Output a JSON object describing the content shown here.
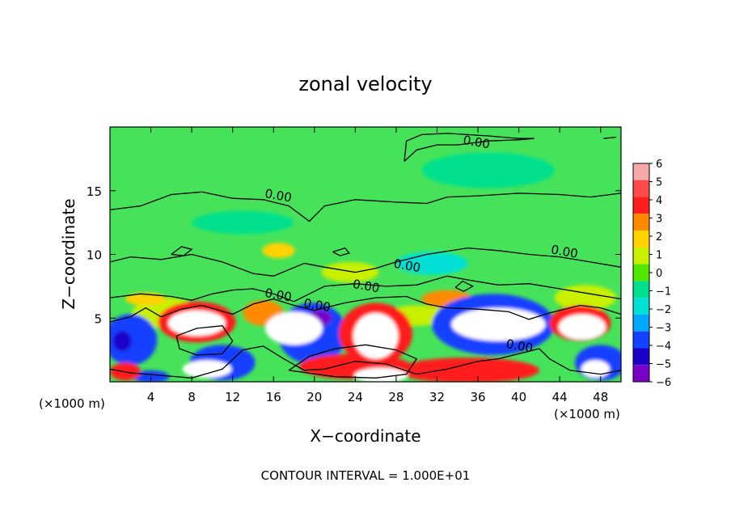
{
  "chart_data": {
    "type": "heatmap",
    "title": "zonal velocity",
    "xlabel": "X−coordinate",
    "ylabel": "Z−coordinate",
    "x_unit_left": "(×1000 m)",
    "x_unit_right": "(×1000 m)",
    "footer": "CONTOUR INTERVAL = 1.000E+01",
    "xlim": [
      0,
      50
    ],
    "ylim": [
      0,
      20
    ],
    "x_ticks": [
      4,
      8,
      12,
      16,
      20,
      24,
      28,
      32,
      36,
      40,
      44,
      48
    ],
    "y_ticks": [
      5,
      10,
      15
    ],
    "colorbar": {
      "levels": [
        6,
        5,
        4,
        3,
        2,
        1,
        0,
        -1,
        -2,
        -3,
        -4,
        -5,
        -6
      ],
      "labels": [
        "6",
        "5",
        "4",
        "3",
        "2",
        "1",
        "0",
        "−1",
        "−2",
        "−3",
        "−4",
        "−5",
        "−6"
      ],
      "colors": [
        "#f7a8a8",
        "#ff4a4a",
        "#ff1e1e",
        "#ff8a00",
        "#ffd200",
        "#c8f000",
        "#50e600",
        "#00e08c",
        "#00e0d6",
        "#00a8ff",
        "#1440ff",
        "#1a00c8",
        "#7a00c8"
      ]
    },
    "background_color": "#46e35a",
    "contour_labels": [
      {
        "text": "0.00",
        "x": 35.8,
        "y": 18.5
      },
      {
        "text": "0.00",
        "x": 16.4,
        "y": 14.3
      },
      {
        "text": "0.00",
        "x": 44.4,
        "y": 9.9
      },
      {
        "text": "0.00",
        "x": 29.0,
        "y": 8.8
      },
      {
        "text": "0.00",
        "x": 25.0,
        "y": 7.2
      },
      {
        "text": "0.00",
        "x": 16.4,
        "y": 6.5
      },
      {
        "text": "0.00",
        "x": 20.2,
        "y": 5.7
      },
      {
        "text": "0.00",
        "x": 40.0,
        "y": 2.5
      }
    ],
    "contours": [
      [
        [
          28.8,
          17.3
        ],
        [
          30.0,
          18.2
        ],
        [
          32.0,
          18.6
        ],
        [
          34.0,
          18.6
        ],
        [
          37.0,
          18.9
        ],
        [
          40.0,
          19.0
        ],
        [
          41.5,
          19.1
        ],
        [
          40.0,
          19.1
        ],
        [
          37.0,
          19.3
        ],
        [
          33.0,
          19.5
        ],
        [
          30.5,
          19.4
        ],
        [
          29.0,
          18.9
        ],
        [
          28.8,
          17.3
        ]
      ],
      [
        [
          0,
          13.5
        ],
        [
          3,
          13.8
        ],
        [
          6,
          14.7
        ],
        [
          9,
          14.9
        ],
        [
          12,
          14.4
        ],
        [
          15,
          14.3
        ],
        [
          17.5,
          13.8
        ],
        [
          19.5,
          12.6
        ],
        [
          21,
          13.8
        ],
        [
          24,
          14.3
        ],
        [
          28,
          14.1
        ],
        [
          31,
          14.0
        ],
        [
          33,
          14.5
        ],
        [
          36,
          14.6
        ],
        [
          40,
          14.8
        ],
        [
          44,
          14.7
        ],
        [
          47,
          14.5
        ],
        [
          50,
          14.8
        ]
      ],
      [
        [
          0,
          9.4
        ],
        [
          2,
          9.8
        ],
        [
          5,
          9.6
        ],
        [
          8,
          10.0
        ],
        [
          11,
          9.4
        ],
        [
          14,
          8.5
        ],
        [
          16,
          8.3
        ],
        [
          19,
          9.3
        ],
        [
          21,
          9.0
        ],
        [
          24,
          8.6
        ],
        [
          26,
          8.9
        ],
        [
          28,
          9.4
        ],
        [
          31,
          10.0
        ],
        [
          35,
          10.5
        ],
        [
          38,
          10.3
        ],
        [
          41,
          10.0
        ],
        [
          44,
          9.8
        ],
        [
          47,
          9.4
        ],
        [
          50,
          9.0
        ]
      ],
      [
        [
          0,
          6.6
        ],
        [
          3,
          6.9
        ],
        [
          6,
          6.7
        ],
        [
          8,
          6.4
        ],
        [
          10,
          6.9
        ],
        [
          12,
          7.2
        ],
        [
          14,
          7.3
        ],
        [
          16,
          6.9
        ],
        [
          18,
          6.3
        ],
        [
          21,
          7.5
        ],
        [
          24,
          7.7
        ],
        [
          27,
          7.5
        ],
        [
          30,
          7.6
        ],
        [
          33,
          8.3
        ],
        [
          35,
          8.0
        ],
        [
          38,
          7.6
        ],
        [
          41,
          7.7
        ],
        [
          44,
          7.3
        ],
        [
          47,
          6.9
        ],
        [
          50,
          6.5
        ]
      ],
      [
        [
          0,
          4.7
        ],
        [
          2,
          5.1
        ],
        [
          3.5,
          5.8
        ],
        [
          5,
          5.1
        ],
        [
          7,
          5.7
        ],
        [
          9,
          6.0
        ],
        [
          12,
          5.3
        ],
        [
          14,
          6.1
        ],
        [
          16,
          6.5
        ],
        [
          18,
          6.0
        ],
        [
          20,
          5.6
        ],
        [
          23,
          6.2
        ],
        [
          26,
          6.6
        ],
        [
          29,
          6.7
        ],
        [
          31,
          6.1
        ],
        [
          33,
          5.8
        ],
        [
          36,
          5.7
        ],
        [
          39,
          5.5
        ],
        [
          41,
          4.9
        ],
        [
          43,
          5.4
        ],
        [
          46,
          6.0
        ],
        [
          48,
          5.8
        ],
        [
          50,
          5.3
        ]
      ],
      [
        [
          0,
          1.0
        ],
        [
          2,
          0.7
        ],
        [
          5,
          0.5
        ],
        [
          8,
          0.3
        ],
        [
          11,
          1.0
        ],
        [
          13,
          2.5
        ],
        [
          15,
          2.8
        ],
        [
          17,
          1.8
        ],
        [
          19,
          0.9
        ],
        [
          21,
          1.0
        ],
        [
          24,
          1.6
        ],
        [
          27,
          1.4
        ],
        [
          30,
          0.6
        ],
        [
          33,
          1.0
        ],
        [
          36,
          1.6
        ],
        [
          38,
          1.8
        ],
        [
          40,
          2.2
        ],
        [
          42,
          2.6
        ],
        [
          43,
          1.8
        ],
        [
          45,
          0.9
        ],
        [
          48,
          0.6
        ],
        [
          50,
          0.9
        ]
      ],
      [
        [
          17.5,
          0.9
        ],
        [
          19.5,
          2.0
        ],
        [
          22,
          2.6
        ],
        [
          25,
          2.9
        ],
        [
          28,
          2.5
        ],
        [
          30,
          1.8
        ],
        [
          29,
          0.6
        ],
        [
          26,
          0.3
        ],
        [
          22,
          0.4
        ],
        [
          17.5,
          0.9
        ]
      ],
      [
        [
          6.5,
          3.6
        ],
        [
          8.5,
          4.2
        ],
        [
          11,
          4.4
        ],
        [
          12,
          3.2
        ],
        [
          11,
          2.2
        ],
        [
          8.5,
          2.1
        ],
        [
          6.8,
          2.6
        ],
        [
          6.5,
          3.6
        ]
      ],
      [
        [
          6,
          10.0
        ],
        [
          7,
          10.6
        ],
        [
          8,
          10.4
        ],
        [
          7.2,
          9.9
        ],
        [
          6,
          10.0
        ]
      ],
      [
        [
          21.8,
          10.2
        ],
        [
          23,
          10.5
        ],
        [
          23.4,
          10.1
        ],
        [
          22.5,
          9.9
        ],
        [
          21.8,
          10.2
        ]
      ],
      [
        [
          33.8,
          7.4
        ],
        [
          34.5,
          7.9
        ],
        [
          35.5,
          7.5
        ],
        [
          34.6,
          7.1
        ],
        [
          33.8,
          7.4
        ]
      ],
      [
        [
          48.3,
          19.1
        ],
        [
          49.5,
          19.2
        ],
        [
          48.3,
          19.1
        ]
      ]
    ],
    "regions": [
      {
        "level": 1,
        "x": 5.5,
        "y": 5.4,
        "rx": 3.3,
        "ry": 1.2
      },
      {
        "level": 1,
        "x": 23.5,
        "y": 8.6,
        "rx": 2.8,
        "ry": 0.8
      },
      {
        "level": 1,
        "x": 46.5,
        "y": 6.6,
        "rx": 3.0,
        "ry": 1.0
      },
      {
        "level": 1,
        "x": 30.0,
        "y": 5.2,
        "rx": 3.0,
        "ry": 0.8
      },
      {
        "level": -1,
        "x": 37.0,
        "y": 16.6,
        "rx": 6.5,
        "ry": 1.4
      },
      {
        "level": -1,
        "x": 13.0,
        "y": 12.5,
        "rx": 5.0,
        "ry": 0.9
      },
      {
        "level": -2,
        "x": 31.5,
        "y": 9.3,
        "rx": 3.5,
        "ry": 0.9
      },
      {
        "level": 2,
        "x": 16.5,
        "y": 10.3,
        "rx": 1.6,
        "ry": 0.6
      },
      {
        "level": 3,
        "x": 33.0,
        "y": 6.5,
        "rx": 2.5,
        "ry": 0.7
      },
      {
        "level": 2,
        "x": 3.5,
        "y": 6.5,
        "rx": 2.0,
        "ry": 0.5
      },
      {
        "level": -4,
        "x": 2.0,
        "y": 3.3,
        "rx": 2.6,
        "ry": 2.0
      },
      {
        "level": -5,
        "x": 1.2,
        "y": 3.2,
        "rx": 0.9,
        "ry": 0.8
      },
      {
        "level": -4,
        "x": 37.5,
        "y": 4.5,
        "rx": 6.0,
        "ry": 2.4
      },
      {
        "level": -4,
        "x": 19.8,
        "y": 3.8,
        "rx": 3.4,
        "ry": 2.4
      },
      {
        "level": -4,
        "x": 11.0,
        "y": 1.5,
        "rx": 3.2,
        "ry": 1.4
      },
      {
        "level": -4,
        "x": 48.0,
        "y": 1.5,
        "rx": 2.5,
        "ry": 1.4
      },
      {
        "level": -4,
        "x": 4.0,
        "y": 0.4,
        "rx": 1.8,
        "ry": 0.5
      },
      {
        "level": -6,
        "x": 20.5,
        "y": 5.0,
        "rx": 1.2,
        "ry": 0.6
      },
      {
        "level": 4,
        "x": 8.5,
        "y": 4.7,
        "rx": 3.8,
        "ry": 1.6
      },
      {
        "level": 4,
        "x": 26.0,
        "y": 3.8,
        "rx": 3.6,
        "ry": 2.4
      },
      {
        "level": 4,
        "x": 46.0,
        "y": 4.6,
        "rx": 3.0,
        "ry": 1.4
      },
      {
        "level": 4,
        "x": 35.0,
        "y": 0.9,
        "rx": 7.0,
        "ry": 1.0
      },
      {
        "level": 4,
        "x": 24.0,
        "y": 1.2,
        "rx": 5.5,
        "ry": 1.0
      },
      {
        "level": 4,
        "x": 1.5,
        "y": 0.8,
        "rx": 1.5,
        "ry": 0.7
      },
      {
        "level": 3,
        "x": 15.0,
        "y": 5.4,
        "rx": 2.0,
        "ry": 1.0
      },
      {
        "level": 6,
        "x": 8.5,
        "y": 4.6,
        "rx": 2.8,
        "ry": 1.0
      },
      {
        "level": 6,
        "x": 18.0,
        "y": 4.2,
        "rx": 2.8,
        "ry": 1.3
      },
      {
        "level": 6,
        "x": 26.0,
        "y": 3.6,
        "rx": 2.2,
        "ry": 1.8
      },
      {
        "level": 6,
        "x": 38.0,
        "y": 4.5,
        "rx": 4.6,
        "ry": 1.3
      },
      {
        "level": 6,
        "x": 46.2,
        "y": 4.3,
        "rx": 2.3,
        "ry": 1.0
      },
      {
        "level": 6,
        "x": 9.5,
        "y": 1.0,
        "rx": 2.4,
        "ry": 0.7
      },
      {
        "level": 6,
        "x": 26.5,
        "y": 0.5,
        "rx": 2.6,
        "ry": 0.6
      },
      {
        "level": 6,
        "x": 47.5,
        "y": 1.0,
        "rx": 1.4,
        "ry": 0.7
      }
    ]
  }
}
